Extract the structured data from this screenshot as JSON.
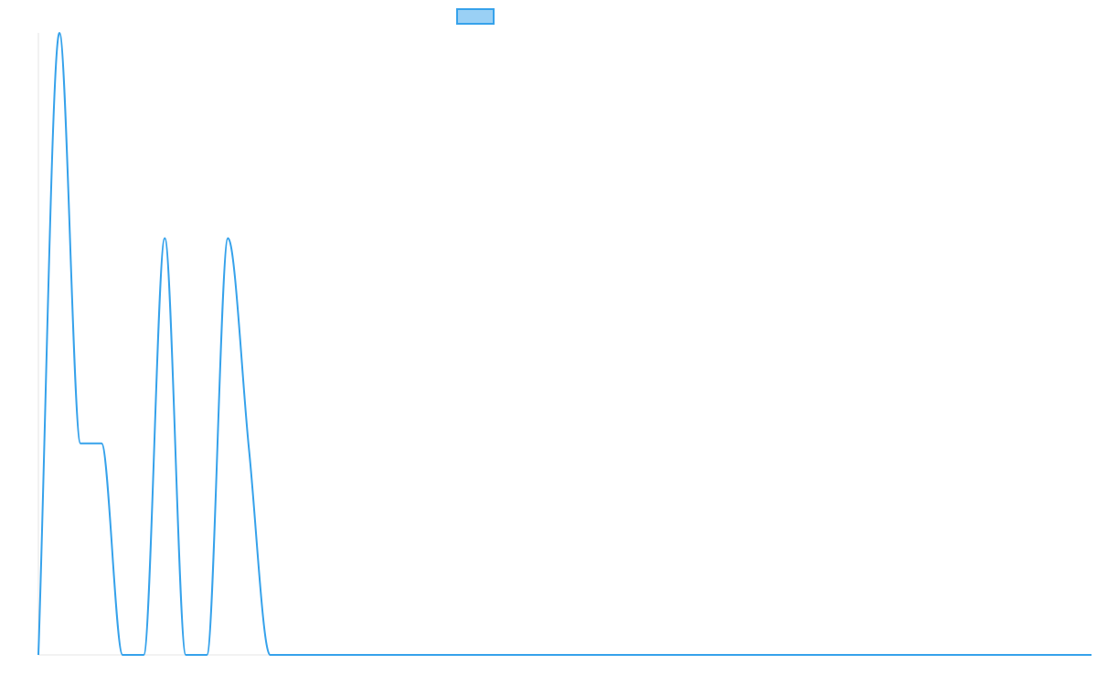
{
  "chart_data": {
    "type": "line",
    "title": "",
    "xlabel": "",
    "ylabel": "",
    "legend": {
      "placement": "top-center",
      "entries": [
        {
          "label": ""
        }
      ]
    },
    "grid": false,
    "series": [
      {
        "color": "#36a2eb",
        "fill": "#9ad0f5",
        "values": [
          0,
          1.0,
          0.34,
          0.34,
          0,
          0,
          0.67,
          0,
          0,
          0.67,
          0.33,
          0,
          0,
          0,
          0,
          0,
          0,
          0,
          0,
          0,
          0,
          0,
          0,
          0,
          0,
          0,
          0,
          0,
          0,
          0,
          0,
          0,
          0,
          0,
          0,
          0,
          0,
          0,
          0,
          0,
          0,
          0,
          0,
          0,
          0,
          0,
          0,
          0,
          0,
          0,
          0
        ]
      }
    ],
    "ylim": [
      0,
      1.0
    ]
  }
}
